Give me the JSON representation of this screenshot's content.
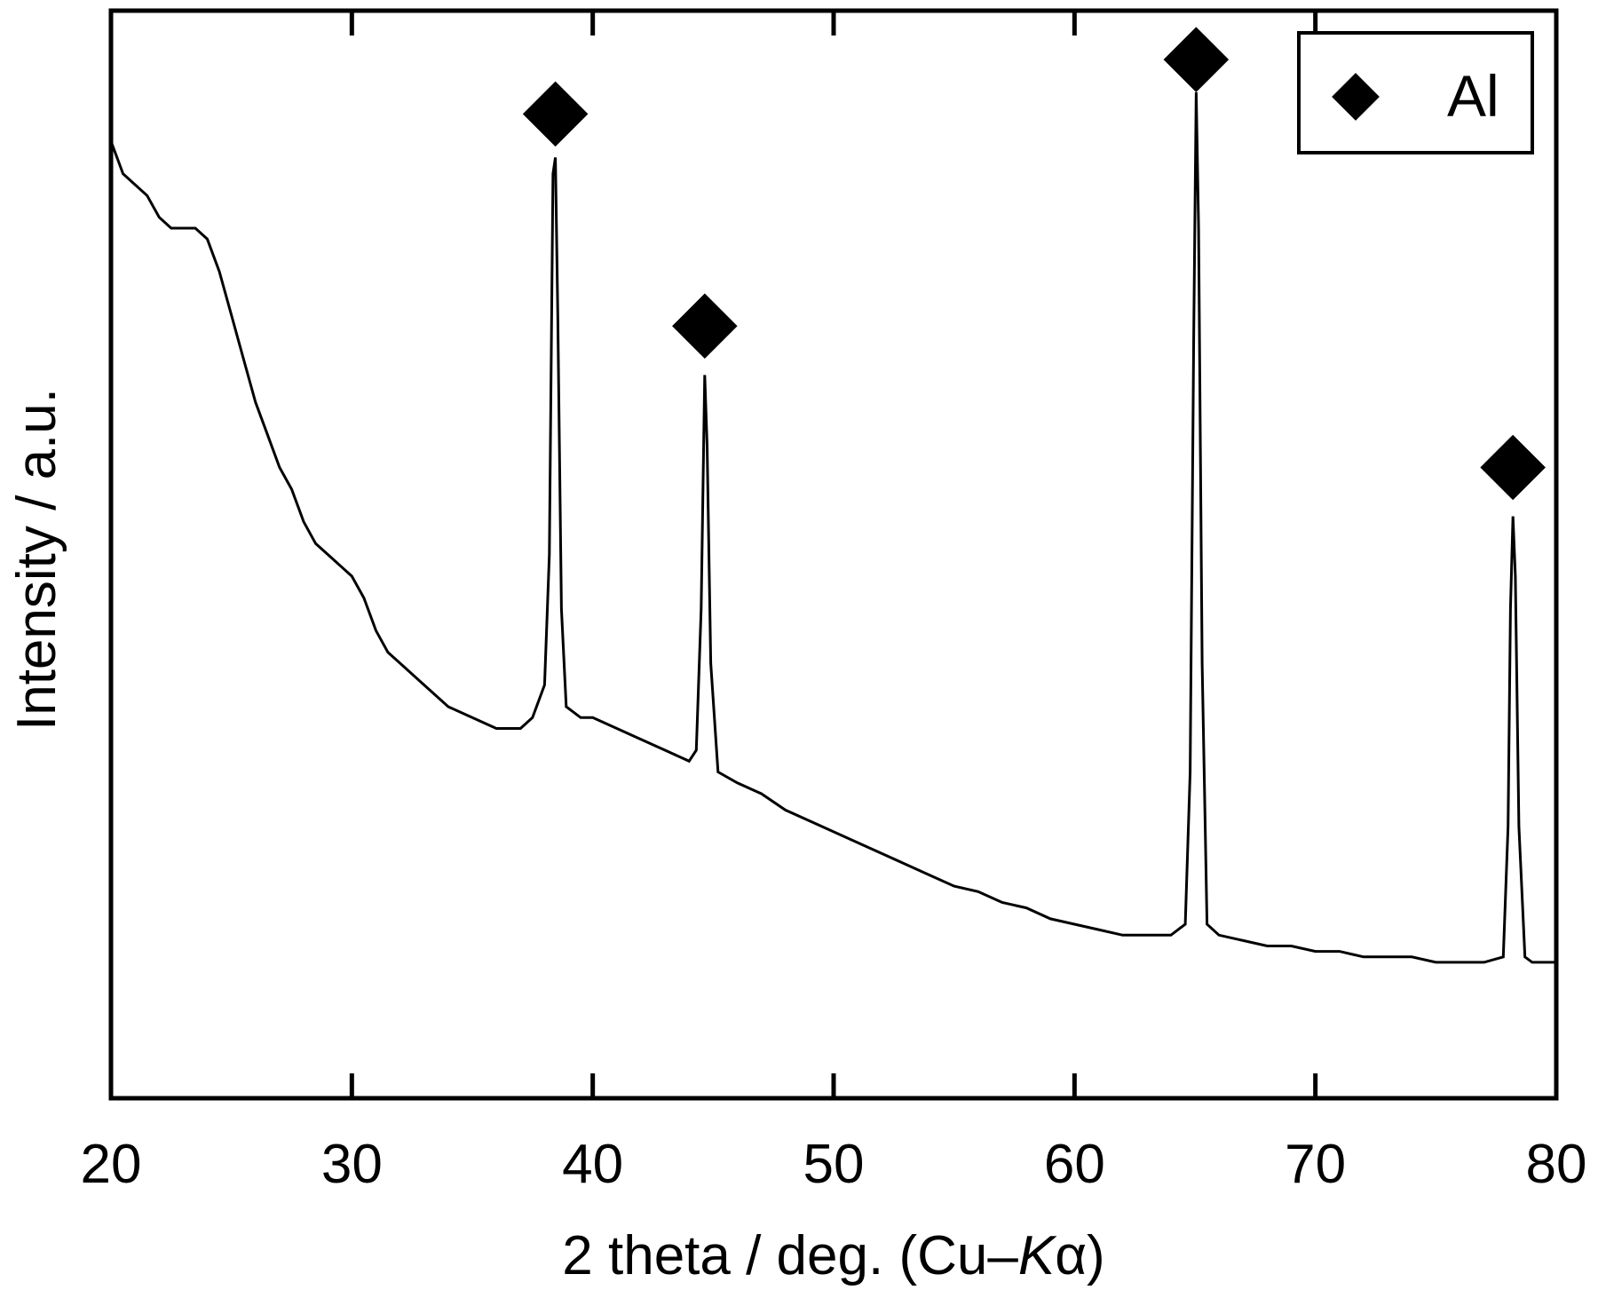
{
  "chart_data": {
    "type": "line",
    "title": "",
    "xlabel_parts": [
      "2 theta / deg. (Cu–",
      "K",
      "α)"
    ],
    "ylabel": "Intensity / a.u.",
    "xlim": [
      20,
      80
    ],
    "ylim": [
      0,
      100
    ],
    "y_ticklabels_shown": false,
    "x_ticks": [
      20,
      30,
      40,
      50,
      60,
      70,
      80
    ],
    "x_ticklabels": [
      "20",
      "30",
      "40",
      "50",
      "60",
      "70",
      "80"
    ],
    "grid": false,
    "legend": {
      "position": "top-right",
      "entries": [
        {
          "label": "Al",
          "marker": "diamond"
        }
      ]
    },
    "colors": {
      "line": "#000000",
      "marker": "#000000"
    },
    "series": [
      {
        "points": [
          [
            20,
            88
          ],
          [
            20.5,
            85
          ],
          [
            21,
            84
          ],
          [
            21.5,
            83
          ],
          [
            22,
            81
          ],
          [
            22.5,
            80
          ],
          [
            23,
            80
          ],
          [
            23.5,
            80
          ],
          [
            24,
            79
          ],
          [
            24.5,
            76
          ],
          [
            25,
            72
          ],
          [
            25.5,
            68
          ],
          [
            26,
            64
          ],
          [
            26.5,
            61
          ],
          [
            27,
            58
          ],
          [
            27.5,
            56
          ],
          [
            28,
            53
          ],
          [
            28.5,
            51
          ],
          [
            29,
            50
          ],
          [
            29.5,
            49
          ],
          [
            30,
            48
          ],
          [
            30.5,
            46
          ],
          [
            31,
            43
          ],
          [
            31.5,
            41
          ],
          [
            32,
            40
          ],
          [
            33,
            38
          ],
          [
            34,
            36
          ],
          [
            35,
            35
          ],
          [
            36,
            34
          ],
          [
            37,
            34
          ],
          [
            37.5,
            35
          ],
          [
            38,
            38
          ],
          [
            38.2,
            50
          ],
          [
            38.35,
            85
          ],
          [
            38.45,
            86.5
          ],
          [
            38.55,
            72
          ],
          [
            38.7,
            45
          ],
          [
            38.9,
            36
          ],
          [
            39.5,
            35
          ],
          [
            40,
            35
          ],
          [
            41,
            34
          ],
          [
            42,
            33
          ],
          [
            43,
            32
          ],
          [
            44,
            31
          ],
          [
            44.3,
            32
          ],
          [
            44.5,
            45
          ],
          [
            44.65,
            66.5
          ],
          [
            44.75,
            60
          ],
          [
            44.9,
            40
          ],
          [
            45.2,
            30
          ],
          [
            46,
            29
          ],
          [
            47,
            28
          ],
          [
            48,
            26.5
          ],
          [
            49,
            25.5
          ],
          [
            50,
            24.5
          ],
          [
            51,
            23.5
          ],
          [
            52,
            22.5
          ],
          [
            53,
            21.5
          ],
          [
            54,
            20.5
          ],
          [
            55,
            19.5
          ],
          [
            56,
            19
          ],
          [
            57,
            18
          ],
          [
            58,
            17.5
          ],
          [
            59,
            16.5
          ],
          [
            60,
            16
          ],
          [
            61,
            15.5
          ],
          [
            62,
            15
          ],
          [
            63,
            15
          ],
          [
            64,
            15
          ],
          [
            64.6,
            16
          ],
          [
            64.8,
            30
          ],
          [
            64.95,
            70
          ],
          [
            65.05,
            92.5
          ],
          [
            65.15,
            80
          ],
          [
            65.3,
            40
          ],
          [
            65.5,
            16
          ],
          [
            66,
            15
          ],
          [
            67,
            14.5
          ],
          [
            68,
            14
          ],
          [
            69,
            14
          ],
          [
            70,
            13.5
          ],
          [
            71,
            13.5
          ],
          [
            72,
            13
          ],
          [
            73,
            13
          ],
          [
            74,
            13
          ],
          [
            75,
            12.5
          ],
          [
            76,
            12.5
          ],
          [
            77,
            12.5
          ],
          [
            77.8,
            13
          ],
          [
            78,
            25
          ],
          [
            78.1,
            45
          ],
          [
            78.2,
            53.5
          ],
          [
            78.3,
            48
          ],
          [
            78.45,
            25
          ],
          [
            78.7,
            13
          ],
          [
            79,
            12.5
          ],
          [
            79.5,
            12.5
          ],
          [
            80,
            12.5
          ]
        ]
      }
    ],
    "peak_markers": [
      {
        "x": 38.45,
        "y": 90.5
      },
      {
        "x": 44.65,
        "y": 71
      },
      {
        "x": 65.05,
        "y": 95.5
      },
      {
        "x": 78.2,
        "y": 58
      }
    ]
  }
}
